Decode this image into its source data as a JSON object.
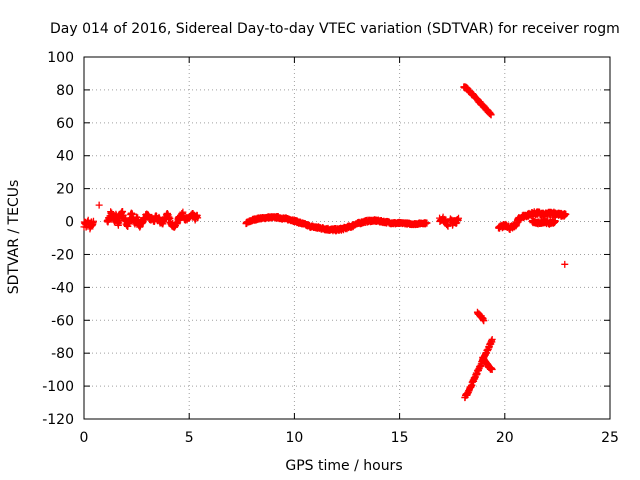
{
  "chart_data": {
    "type": "scatter",
    "title": "Day 014 of 2016, Sidereal Day-to-day VTEC variation (SDTVAR) for receiver rogm",
    "xlabel": "GPS time / hours",
    "ylabel": "SDTVAR / TECUs",
    "xlim": [
      0,
      25
    ],
    "ylim": [
      -120,
      100
    ],
    "x_ticks": [
      0,
      5,
      10,
      15,
      20,
      25
    ],
    "y_ticks": [
      -120,
      -100,
      -80,
      -60,
      -40,
      -20,
      0,
      20,
      40,
      60,
      80,
      100
    ],
    "grid": true,
    "marker": "+",
    "point_color": "#ff0000",
    "series": [
      {
        "name": "SDTVAR",
        "segments": [
          {
            "x0": 0.0,
            "x1": 0.45,
            "y": [
              -2,
              0,
              -3,
              -1,
              0,
              -2,
              -4,
              -1,
              -3,
              0
            ],
            "dy": 2.5
          },
          {
            "x0": 1.1,
            "x1": 2.6,
            "y": [
              -1,
              2,
              5,
              3,
              1,
              4,
              -2,
              3,
              6,
              2,
              0,
              -2,
              1,
              4,
              3,
              -1,
              2,
              0
            ],
            "dy": 3
          },
          {
            "x0": 2.6,
            "x1": 3.6,
            "y": [
              -3,
              -2,
              0,
              2,
              4,
              3,
              1,
              2,
              0,
              3,
              1,
              2
            ],
            "dy": 2
          },
          {
            "x0": 3.6,
            "x1": 5.4,
            "y": [
              0,
              -1,
              2,
              4,
              1,
              -2,
              -3,
              0,
              3,
              5,
              2,
              1,
              3,
              4,
              2,
              3
            ],
            "dy": 2.5
          },
          {
            "x0": 7.7,
            "x1": 9.2,
            "y": [
              -1,
              0,
              1,
              1.5,
              2,
              2,
              2.5,
              2.5,
              2.5,
              2.5
            ],
            "dy": 1
          },
          {
            "x0": 9.2,
            "x1": 11.0,
            "y": [
              2.5,
              2,
              1.5,
              1,
              0,
              -1,
              -2,
              -3,
              -3.5
            ],
            "dy": 1.2
          },
          {
            "x0": 11.0,
            "x1": 12.8,
            "y": [
              -3.5,
              -4,
              -4.5,
              -5,
              -5,
              -4.5,
              -3.5,
              -2.5
            ],
            "dy": 1.5
          },
          {
            "x0": 12.8,
            "x1": 15.0,
            "y": [
              -2,
              -1,
              0,
              0.5,
              0.5,
              0,
              -0.5,
              -1,
              -1
            ],
            "dy": 1.2
          },
          {
            "x0": 15.0,
            "x1": 16.3,
            "y": [
              -1,
              -1,
              -1.5,
              -1.5,
              -1,
              -1
            ],
            "dy": 0.8
          },
          {
            "x0": 16.9,
            "x1": 17.3,
            "y": [
              1,
              2,
              0,
              -2
            ],
            "dy": 2.5
          },
          {
            "x0": 17.4,
            "x1": 17.8,
            "y": [
              1,
              -1,
              0,
              2
            ],
            "dy": 3
          },
          {
            "x0": 18.05,
            "x1": 19.35,
            "y": [
              82,
              81,
              79,
              77,
              75,
              73,
              71,
              69,
              67,
              65
            ],
            "dy": 1
          },
          {
            "x0": 18.1,
            "x1": 19.4,
            "y": [
              -107,
              -104,
              -100,
              -96,
              -92,
              -88,
              -84,
              -80,
              -76,
              -72
            ],
            "dy": 1.5
          },
          {
            "x0": 18.7,
            "x1": 19.0,
            "y": [
              -55,
              -57,
              -58,
              -60
            ],
            "dy": 1
          },
          {
            "x0": 18.95,
            "x1": 19.4,
            "y": [
              -83,
              -85,
              -87,
              -89,
              -90
            ],
            "dy": 1.2
          },
          {
            "x0": 19.7,
            "x1": 20.6,
            "y": [
              -4,
              -3,
              -2,
              -4,
              -3,
              -1
            ],
            "dy": 2
          },
          {
            "x0": 20.6,
            "x1": 22.9,
            "y": [
              1,
              3,
              4,
              5,
              5,
              4,
              5,
              5,
              4,
              4
            ],
            "dy": 2
          },
          {
            "x0": 21.3,
            "x1": 22.4,
            "y": [
              0,
              -1,
              0,
              -1,
              0
            ],
            "dy": 1.5
          }
        ],
        "isolated_points": [
          {
            "x": 0.72,
            "y": 10
          },
          {
            "x": 22.85,
            "y": -26
          }
        ]
      }
    ]
  }
}
